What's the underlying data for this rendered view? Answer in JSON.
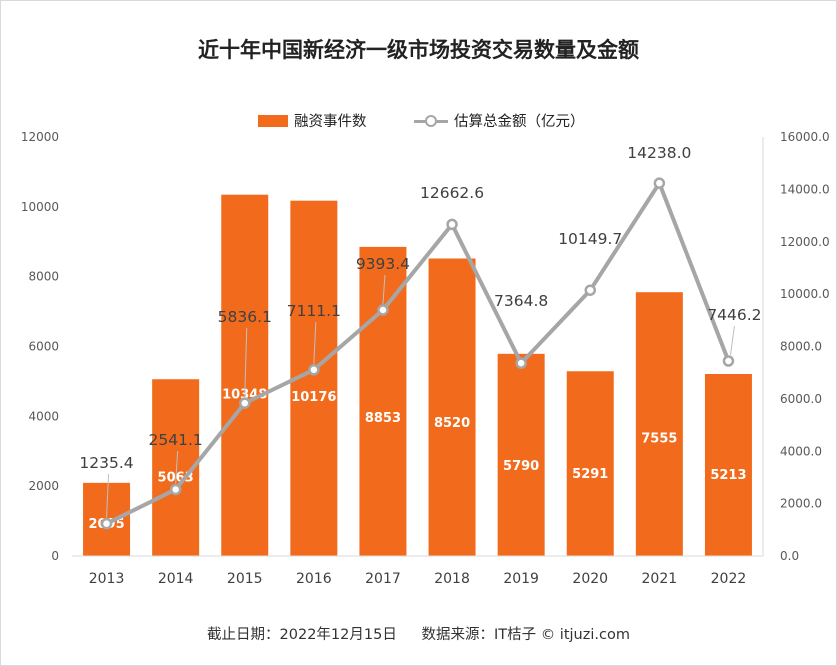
{
  "chart_data": {
    "type": "bar+line",
    "title": "近十年中国新经济一级市场投资交易数量及金额",
    "categories": [
      "2013",
      "2014",
      "2015",
      "2016",
      "2017",
      "2018",
      "2019",
      "2020",
      "2021",
      "2022"
    ],
    "series": [
      {
        "name": "融资事件数",
        "type": "bar",
        "axis": "left",
        "color": "#F26B1D",
        "values": [
          2095,
          5063,
          10348,
          10176,
          8853,
          8520,
          5790,
          5291,
          7555,
          5213
        ],
        "labels": [
          "2095",
          "5063",
          "10348",
          "10176",
          "8853",
          "8520",
          "5790",
          "5291",
          "7555",
          "5213"
        ]
      },
      {
        "name": "估算总金额（亿元）",
        "type": "line",
        "axis": "right",
        "color": "#A6A6A6",
        "values": [
          1235.4,
          2541.1,
          5836.1,
          7111.1,
          9393.4,
          12662.6,
          7364.8,
          10149.7,
          14238.0,
          7446.2
        ],
        "labels": [
          "1235.4",
          "2541.1",
          "5836.1",
          "7111.1",
          "9393.4",
          "12662.6",
          "7364.8",
          "10149.7",
          "14238.0",
          "7446.2"
        ]
      }
    ],
    "y_left": {
      "min": 0,
      "max": 12000,
      "step": 2000,
      "ticks": [
        "0",
        "2000",
        "4000",
        "6000",
        "8000",
        "10000",
        "12000"
      ]
    },
    "y_right": {
      "min": 0,
      "max": 16000,
      "step": 2000,
      "ticks": [
        "0.0",
        "2000.0",
        "4000.0",
        "6000.0",
        "8000.0",
        "10000.0",
        "12000.0",
        "14000.0",
        "16000.0"
      ]
    },
    "grid": false,
    "legend_position": "top-center"
  },
  "legend": {
    "bar_label": "融资事件数",
    "line_label": "估算总金额（亿元）"
  },
  "footer": {
    "date": "截止日期：2022年12月15日",
    "source": "数据来源：IT桔子 © itjuzi.com"
  },
  "colors": {
    "bar": "#F26B1D",
    "line": "#A6A6A6",
    "bar_label": "#ffffff",
    "line_label": "#404040"
  }
}
